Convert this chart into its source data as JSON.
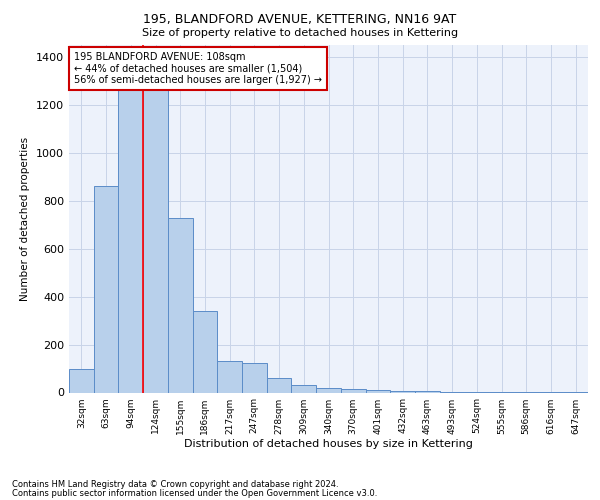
{
  "title1": "195, BLANDFORD AVENUE, KETTERING, NN16 9AT",
  "title2": "Size of property relative to detached houses in Kettering",
  "xlabel": "Distribution of detached houses by size in Kettering",
  "ylabel": "Number of detached properties",
  "categories": [
    "32sqm",
    "63sqm",
    "94sqm",
    "124sqm",
    "155sqm",
    "186sqm",
    "217sqm",
    "247sqm",
    "278sqm",
    "309sqm",
    "340sqm",
    "370sqm",
    "401sqm",
    "432sqm",
    "463sqm",
    "493sqm",
    "524sqm",
    "555sqm",
    "586sqm",
    "616sqm",
    "647sqm"
  ],
  "values": [
    100,
    860,
    1340,
    1340,
    730,
    340,
    130,
    125,
    60,
    30,
    20,
    15,
    10,
    5,
    5,
    3,
    2,
    2,
    2,
    2,
    2
  ],
  "bar_color": "#b8d0eb",
  "bar_edge_color": "#5b8cc8",
  "bar_linewidth": 0.7,
  "grid_color": "#c8d4e8",
  "background_color": "#edf2fb",
  "red_line_x": 2.5,
  "annotation_text": "195 BLANDFORD AVENUE: 108sqm\n← 44% of detached houses are smaller (1,504)\n56% of semi-detached houses are larger (1,927) →",
  "annotation_box_color": "#cc0000",
  "ylim": [
    0,
    1450
  ],
  "yticks": [
    0,
    200,
    400,
    600,
    800,
    1000,
    1200,
    1400
  ],
  "footnote1": "Contains HM Land Registry data © Crown copyright and database right 2024.",
  "footnote2": "Contains public sector information licensed under the Open Government Licence v3.0."
}
